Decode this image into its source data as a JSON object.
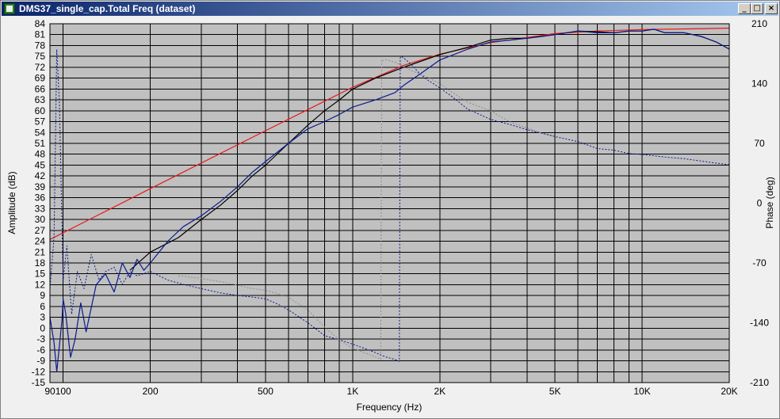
{
  "window": {
    "title": "DMS37_single_cap.Total Freq (dataset)",
    "minimize_glyph": "_",
    "maximize_glyph": "□",
    "close_glyph": "×"
  },
  "chart_data": {
    "type": "line",
    "xlabel": "Frequency (Hz)",
    "ylabel": "Amplitude (dB)",
    "y2label": "Phase (deg)",
    "xscale": "log",
    "xlim": [
      90,
      20000
    ],
    "ylim": [
      -15,
      84
    ],
    "y2lim": [
      -210,
      210
    ],
    "grid": true,
    "x_ticks": [
      {
        "v": 100,
        "label": ""
      },
      {
        "v": 200,
        "label": "200"
      },
      {
        "v": 300,
        "label": ""
      },
      {
        "v": 400,
        "label": ""
      },
      {
        "v": 500,
        "label": "500"
      },
      {
        "v": 600,
        "label": ""
      },
      {
        "v": 700,
        "label": ""
      },
      {
        "v": 800,
        "label": ""
      },
      {
        "v": 900,
        "label": ""
      },
      {
        "v": 1000,
        "label": "1K"
      },
      {
        "v": 2000,
        "label": "2K"
      },
      {
        "v": 3000,
        "label": ""
      },
      {
        "v": 4000,
        "label": ""
      },
      {
        "v": 5000,
        "label": "5K"
      },
      {
        "v": 6000,
        "label": ""
      },
      {
        "v": 7000,
        "label": ""
      },
      {
        "v": 8000,
        "label": ""
      },
      {
        "v": 9000,
        "label": ""
      },
      {
        "v": 10000,
        "label": "10K"
      },
      {
        "v": 20000,
        "label": "20K"
      }
    ],
    "x_edge_labels": [
      {
        "v": 90,
        "label": "90"
      },
      {
        "v": 100,
        "label": "100"
      }
    ],
    "y_ticks": [
      84,
      81,
      78,
      75,
      72,
      69,
      66,
      63,
      60,
      57,
      54,
      51,
      48,
      45,
      42,
      39,
      36,
      33,
      30,
      27,
      24,
      21,
      18,
      15,
      12,
      9,
      6,
      3,
      0,
      -3,
      -6,
      -9,
      -12,
      -15
    ],
    "y2_ticks": [
      210,
      140,
      70,
      0,
      -70,
      -140,
      -210
    ],
    "colors": {
      "plot_bg": "#c0c0c0",
      "grid": "#000000",
      "red": "#e8191b",
      "black": "#000000",
      "navy": "#0a1a8c",
      "gray": "#8c8c8c"
    },
    "series": [
      {
        "color": "red",
        "axis": "left",
        "style": "solid",
        "x": [
          90,
          200,
          500,
          1000,
          1500,
          2000,
          3000,
          5000,
          7000,
          10000,
          15000,
          20000
        ],
        "y": [
          24.5,
          38.5,
          54.5,
          66.5,
          72.5,
          75.6,
          78.8,
          81.3,
          82.0,
          82.4,
          82.6,
          82.8
        ]
      },
      {
        "color": "black",
        "axis": "left",
        "style": "solid",
        "x": [
          170,
          200,
          250,
          300,
          350,
          400,
          450,
          500,
          600,
          700,
          800,
          900,
          1000,
          1200,
          1500,
          1700,
          2000,
          2500,
          3000,
          3500,
          4000,
          4500,
          5000,
          6000,
          7000,
          8000,
          9000,
          10000,
          11000,
          12000,
          14000,
          16000,
          18000,
          20000
        ],
        "y": [
          16,
          21,
          25,
          30,
          34,
          38,
          42,
          45,
          51,
          56,
          60,
          63,
          66,
          69,
          72,
          73.5,
          75.5,
          77.5,
          79.5,
          80,
          80,
          80.5,
          81,
          82,
          81.8,
          81.5,
          82,
          82,
          82.5,
          81.5,
          81.5,
          80.5,
          79,
          77
        ]
      },
      {
        "color": "navy",
        "axis": "left",
        "style": "solid",
        "x": [
          90,
          93,
          95,
          97,
          99,
          100,
          102,
          104,
          106,
          110,
          115,
          120,
          130,
          140,
          150,
          160,
          170,
          180,
          190,
          200,
          230,
          260,
          300,
          350,
          400,
          450,
          500,
          600,
          700,
          800,
          900,
          1000,
          1200,
          1400,
          1500,
          1700,
          2000,
          2500,
          3000,
          3500,
          4000,
          4500,
          5000,
          6000,
          7000,
          8000,
          9000,
          10000,
          11000,
          12000,
          14000,
          16000,
          18000,
          20000
        ],
        "y": [
          3,
          -4,
          -12,
          -5,
          2,
          8,
          4,
          -2,
          -8,
          -3,
          7,
          -1,
          12,
          15,
          10,
          18,
          14,
          19,
          16,
          18,
          24,
          28,
          31,
          35,
          39,
          43,
          46,
          51,
          55,
          57,
          59,
          61,
          63,
          65,
          67,
          70,
          74,
          77,
          79,
          79.5,
          80,
          80.5,
          81,
          82,
          81.5,
          81.5,
          82,
          82,
          82.5,
          81.5,
          81.5,
          80.5,
          79,
          77
        ]
      },
      {
        "color": "navy",
        "axis": "right",
        "style": "dash",
        "x": [
          90,
          93,
          95,
          97,
          100,
          103,
          107,
          112,
          118,
          125,
          133,
          140,
          150,
          160,
          170,
          180,
          200,
          230,
          260,
          300,
          350,
          400,
          450,
          500,
          550,
          600,
          700,
          800,
          900,
          1000,
          1100,
          1200,
          1300,
          1400,
          1450,
          1460,
          1470,
          1500,
          1600,
          1700,
          1800,
          2000,
          2200,
          2500,
          3000,
          3500,
          4000,
          4500,
          5000,
          6000,
          7000,
          8000,
          9000,
          10000,
          12000,
          14000,
          17000,
          20000
        ],
        "y": [
          -100,
          -40,
          180,
          120,
          -90,
          -50,
          -130,
          -80,
          -100,
          -60,
          -90,
          -80,
          -75,
          -95,
          -80,
          -85,
          -80,
          -90,
          -95,
          -100,
          -105,
          -108,
          -110,
          -112,
          -118,
          -125,
          -140,
          -155,
          -160,
          -165,
          -170,
          -175,
          -180,
          -183,
          -185,
          170,
          172,
          170,
          162,
          152,
          145,
          135,
          125,
          110,
          98,
          92,
          86,
          82,
          78,
          72,
          64,
          62,
          58,
          57,
          54,
          52,
          48,
          45
        ]
      },
      {
        "color": "gray",
        "axis": "right",
        "style": "dash",
        "x": [
          250,
          300,
          350,
          400,
          450,
          500,
          550,
          600,
          650,
          700,
          800,
          900,
          1000,
          1100,
          1200,
          1250,
          1260,
          1270,
          1300,
          1400,
          1500,
          1600,
          1800,
          2000,
          2200,
          2500,
          3000,
          3500,
          4000,
          4500,
          5000
        ],
        "y": [
          -85,
          -88,
          -92,
          -96,
          -100,
          -102,
          -106,
          -110,
          -118,
          -125,
          -145,
          -160,
          -170,
          -175,
          -180,
          -183,
          168,
          167,
          168,
          165,
          160,
          155,
          148,
          140,
          130,
          118,
          108,
          95,
          88,
          82,
          78
        ]
      }
    ]
  }
}
